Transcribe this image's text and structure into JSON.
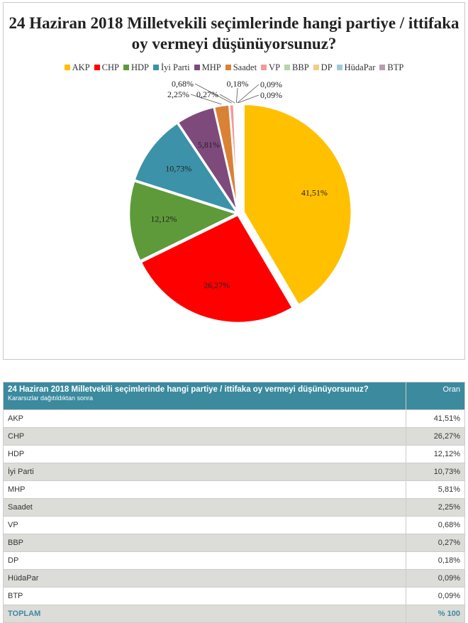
{
  "chart_data": {
    "type": "pie",
    "title": "24 Haziran 2018 Milletvekili seçimlerinde hangi partiye / ittifaka oy vermeyi düşünüyorsunuz?",
    "legend_position": "top",
    "categories": [
      "AKP",
      "CHP",
      "HDP",
      "İyi Parti",
      "MHP",
      "Saadet",
      "VP",
      "BBP",
      "DP",
      "HüdaPar",
      "BTP"
    ],
    "values": [
      41.51,
      26.27,
      12.12,
      10.73,
      5.81,
      2.25,
      0.68,
      0.27,
      0.18,
      0.09,
      0.09
    ],
    "labels": [
      "41,51%",
      "26,27%",
      "12,12%",
      "10,73%",
      "5,81%",
      "2,25%",
      "0,68%",
      "0,27%",
      "0,18%",
      "0,09%",
      "0,09%"
    ],
    "colors": [
      "#FFC000",
      "#FF0000",
      "#5E9A3A",
      "#3C92A8",
      "#7E4A7C",
      "#D98235",
      "#F39A9A",
      "#B8D4A8",
      "#F0CC8A",
      "#9FC9DA",
      "#B79DB0"
    ]
  },
  "table": {
    "title": "24 Haziran 2018 Milletvekili seçimlerinde hangi partiye / ittifaka oy vermeyi düşünüyorsunuz?",
    "subtitle": "Kararsızlar dağıtıldıktan sonra",
    "value_header": "Oran",
    "rows": [
      {
        "party": "AKP",
        "value": "41,51%"
      },
      {
        "party": "CHP",
        "value": "26,27%"
      },
      {
        "party": "HDP",
        "value": "12,12%"
      },
      {
        "party": "İyi Parti",
        "value": "10,73%"
      },
      {
        "party": "MHP",
        "value": "5,81%"
      },
      {
        "party": "Saadet",
        "value": "2,25%"
      },
      {
        "party": "VP",
        "value": "0,68%"
      },
      {
        "party": "BBP",
        "value": "0,27%"
      },
      {
        "party": "DP",
        "value": "0,18%"
      },
      {
        "party": "HüdaPar",
        "value": "0,09%"
      },
      {
        "party": "BTP",
        "value": "0,09%"
      }
    ],
    "total_label": "TOPLAM",
    "total_value": "% 100"
  }
}
